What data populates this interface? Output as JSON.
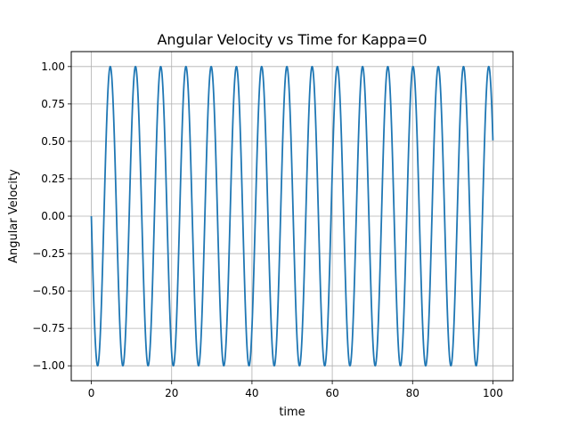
{
  "chart_data": {
    "type": "line",
    "title": "Angular Velocity vs Time for Kappa=0",
    "xlabel": "time",
    "ylabel": "Angular Velocity",
    "xlim": [
      -5,
      105
    ],
    "ylim": [
      -1.1,
      1.1
    ],
    "grid": true,
    "xticks": [
      0,
      20,
      40,
      60,
      80,
      100
    ],
    "xtick_labels": [
      "0",
      "20",
      "40",
      "60",
      "80",
      "100"
    ],
    "yticks": [
      -1.0,
      -0.75,
      -0.5,
      -0.25,
      0.0,
      0.25,
      0.5,
      0.75,
      1.0
    ],
    "ytick_labels": [
      "−1.00",
      "−0.75",
      "−0.50",
      "−0.25",
      "0.00",
      "0.25",
      "0.50",
      "0.75",
      "1.00"
    ],
    "series": [
      {
        "color": "#1f77b4",
        "function": "y = -sin(omega * t)",
        "omega": 1.0,
        "x_range": [
          0,
          100
        ],
        "x": [
          0,
          1.57,
          3.14,
          4.71,
          6.28,
          10.99,
          17.28,
          23.56,
          29.85,
          36.13,
          42.41,
          48.69,
          54.98,
          61.26,
          67.54,
          73.83,
          80.11,
          86.39,
          92.68,
          98.96,
          100
        ],
        "values": [
          0.0,
          -1.0,
          0.0,
          1.0,
          0.0,
          1.0,
          1.0,
          1.0,
          1.0,
          1.0,
          1.0,
          1.0,
          1.0,
          1.0,
          1.0,
          1.0,
          1.0,
          1.0,
          1.0,
          1.0,
          0.51
        ]
      }
    ]
  }
}
